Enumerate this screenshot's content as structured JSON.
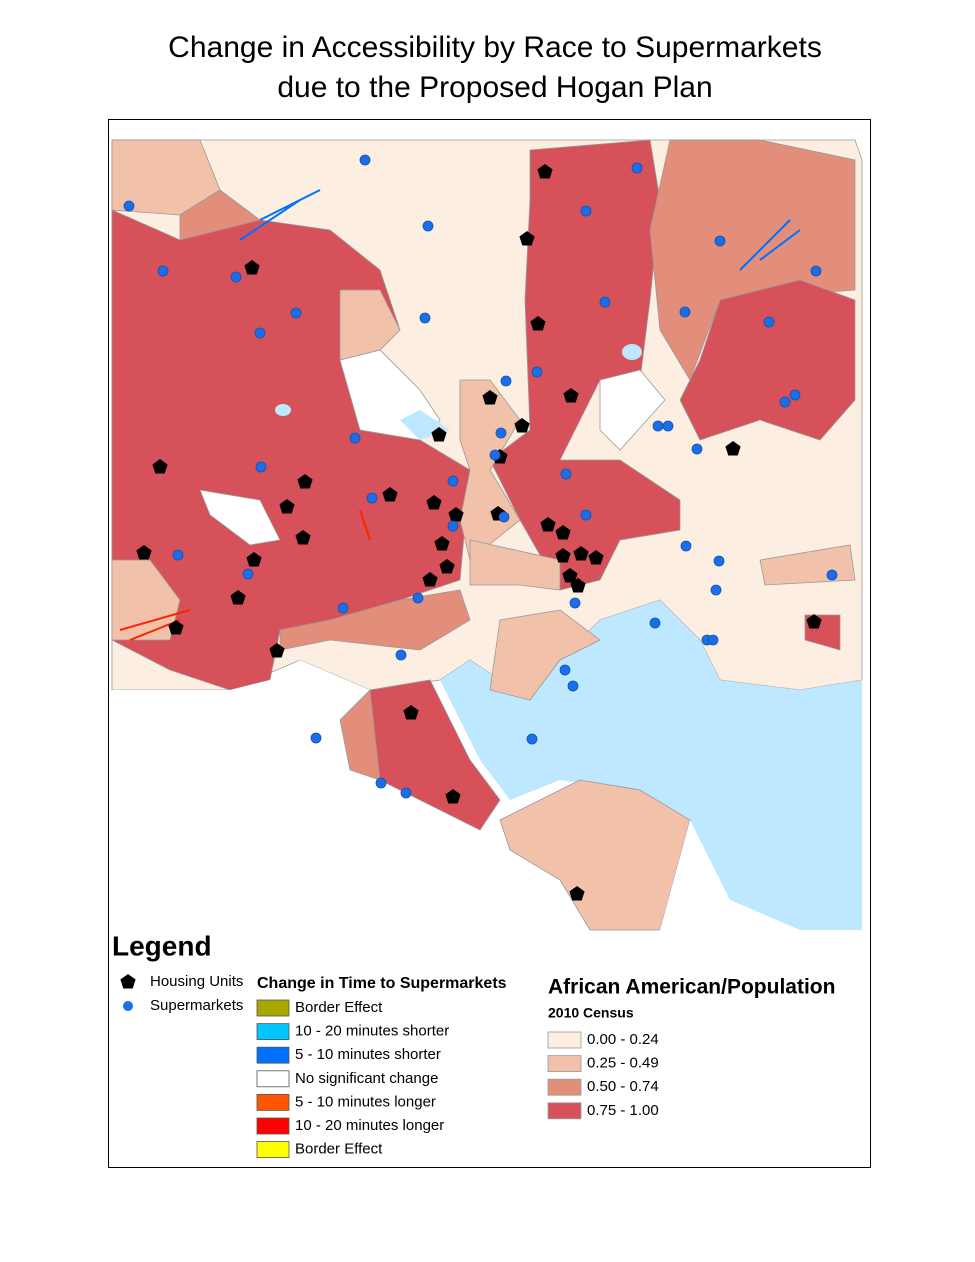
{
  "title": [
    "Change in Accessibility by Race to Supermarkets",
    "due to the Proposed Hogan Plan"
  ],
  "legend": {
    "title": "Legend",
    "symbols": [
      {
        "label": "Housing Units",
        "color": "#000000"
      },
      {
        "label": "Supermarkets",
        "color": "#1a6fe8"
      }
    ],
    "change": {
      "title": "Change in Time to Supermarkets",
      "items": [
        {
          "label": "Border Effect",
          "color": "#a8a800"
        },
        {
          "label": "10 - 20 minutes shorter",
          "color": "#00c5ff"
        },
        {
          "label": "5 - 10 minutes shorter",
          "color": "#0070ff"
        },
        {
          "label": "No significant change",
          "color": "#ffffff"
        },
        {
          "label": "5 - 10 minutes longer",
          "color": "#ff5500"
        },
        {
          "label": "10 - 20 minutes longer",
          "color": "#ff0000"
        },
        {
          "label": "Border Effect",
          "color": "#ffff00"
        }
      ]
    },
    "race": {
      "title": "African American/Population",
      "subtitle": "2010 Census",
      "items": [
        {
          "label": "0.00 - 0.24",
          "color": "#fdeee2"
        },
        {
          "label": "0.25 - 0.49",
          "color": "#f2c1aa"
        },
        {
          "label": "0.50 - 0.74",
          "color": "#e28e7a"
        },
        {
          "label": "0.75 - 1.00",
          "color": "#d6515a"
        }
      ]
    }
  }
}
